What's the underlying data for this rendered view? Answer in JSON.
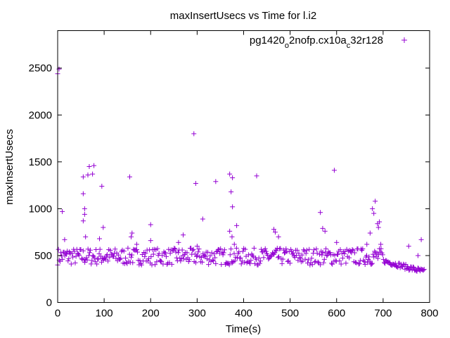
{
  "chart_data": {
    "type": "scatter",
    "title": "maxInsertUsecs vs Time for l.i2",
    "xlabel": "Time(s)",
    "ylabel": "maxInsertUsecs",
    "xlim": [
      0,
      800
    ],
    "ylim": [
      0,
      2900
    ],
    "xticks": [
      "0",
      "100",
      "200",
      "300",
      "400",
      "500",
      "600",
      "700",
      "800"
    ],
    "yticks": [
      "0",
      "500",
      "1000",
      "1500",
      "2000",
      "2500"
    ],
    "legend_position": "top-right",
    "grid": false,
    "series": [
      {
        "name": "pg1420_o2nofp.cx10a_c32r128",
        "name_parts": [
          {
            "text": "pg1420",
            "sub": false
          },
          {
            "text": "o",
            "sub": true
          },
          {
            "text": "2nofp.cx10a",
            "sub": false
          },
          {
            "text": "c",
            "sub": true
          },
          {
            "text": "32r128",
            "sub": false
          }
        ],
        "color": "#9400d3",
        "marker": "plus",
        "points": [
          [
            0,
            2440
          ],
          [
            3,
            2490
          ],
          [
            10,
            970
          ],
          [
            15,
            670
          ],
          [
            25,
            540
          ],
          [
            55,
            1340
          ],
          [
            55,
            1160
          ],
          [
            58,
            1000
          ],
          [
            58,
            940
          ],
          [
            55,
            870
          ],
          [
            60,
            700
          ],
          [
            65,
            1360
          ],
          [
            68,
            1450
          ],
          [
            75,
            1370
          ],
          [
            78,
            1460
          ],
          [
            95,
            1240
          ],
          [
            98,
            800
          ],
          [
            90,
            680
          ],
          [
            155,
            1340
          ],
          [
            160,
            740
          ],
          [
            158,
            700
          ],
          [
            170,
            620
          ],
          [
            200,
            830
          ],
          [
            200,
            660
          ],
          [
            270,
            720
          ],
          [
            260,
            640
          ],
          [
            293,
            1800
          ],
          [
            297,
            1270
          ],
          [
            300,
            600
          ],
          [
            312,
            890
          ],
          [
            340,
            1290
          ],
          [
            370,
            1370
          ],
          [
            373,
            1180
          ],
          [
            376,
            1330
          ],
          [
            376,
            1020
          ],
          [
            370,
            760
          ],
          [
            375,
            700
          ],
          [
            385,
            820
          ],
          [
            380,
            620
          ],
          [
            428,
            1350
          ],
          [
            465,
            780
          ],
          [
            468,
            750
          ],
          [
            475,
            700
          ],
          [
            565,
            960
          ],
          [
            570,
            790
          ],
          [
            575,
            760
          ],
          [
            595,
            1410
          ],
          [
            600,
            640
          ],
          [
            665,
            620
          ],
          [
            672,
            740
          ],
          [
            677,
            1000
          ],
          [
            680,
            950
          ],
          [
            683,
            1080
          ],
          [
            688,
            840
          ],
          [
            692,
            860
          ],
          [
            690,
            800
          ],
          [
            695,
            620
          ],
          [
            755,
            600
          ],
          [
            775,
            500
          ],
          [
            782,
            670
          ]
        ],
        "band": {
          "segments": [
            {
              "x": [
                0,
                700
              ],
              "y_low": 400,
              "y_high": 580
            },
            {
              "x": [
                700,
                800
              ],
              "y_low": 280,
              "y_high": 430
            }
          ],
          "count": 460,
          "seed": 7
        }
      }
    ]
  }
}
